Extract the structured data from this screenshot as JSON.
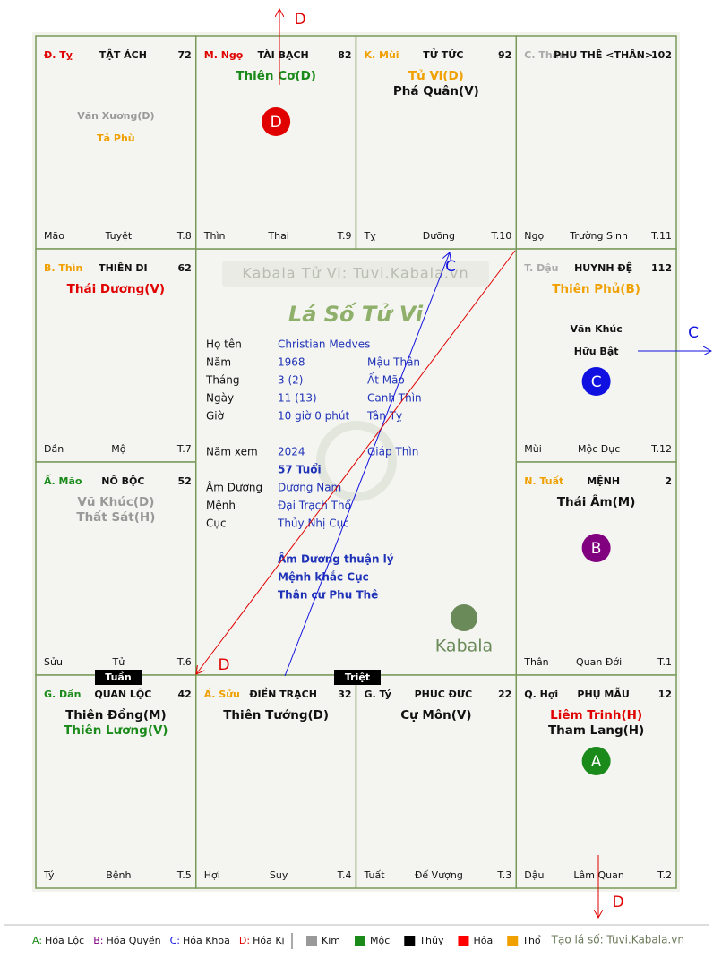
{
  "palaces": [
    {
      "branch": "Đ. Tỵ",
      "branch_color": "#e00000",
      "name": "TẬT ÁCH",
      "number": "72",
      "major_stars": [],
      "minor_stars": [
        {
          "text": "Văn Xương(D)",
          "color": "#999999"
        },
        {
          "text": "Tả Phù",
          "color": "#f0a000"
        }
      ],
      "bottom": [
        "Mão",
        "Tuyệt",
        "T.8"
      ]
    },
    {
      "branch": "M. Ngọ",
      "branch_color": "#e00000",
      "name": "TÀI BẠCH",
      "number": "82",
      "major_stars": [
        {
          "text": "Thiên Cơ(D)",
          "color": "#1a8a1a"
        }
      ],
      "minor_stars": [],
      "marker": {
        "letter": "D",
        "color": "#e00000"
      },
      "bottom": [
        "Thìn",
        "Thai",
        "T.9"
      ]
    },
    {
      "branch": "K. Mùi",
      "branch_color": "#f0a000",
      "name": "TỬ TỨC",
      "number": "92",
      "major_stars": [
        {
          "text": "Tử Vi(D)",
          "color": "#f0a000"
        },
        {
          "text": "Phá Quân(V)",
          "color": "#111111"
        }
      ],
      "minor_stars": [],
      "bottom": [
        "Tỵ",
        "Dưỡng",
        "T.10"
      ]
    },
    {
      "branch": "C. Thân",
      "branch_color": "#aaaaaa",
      "name": "PHU THÊ <THÂN>",
      "number": "102",
      "major_stars": [],
      "minor_stars": [],
      "bottom": [
        "Ngọ",
        "Trường Sinh",
        "T.11"
      ]
    },
    {
      "branch": "B. Thìn",
      "branch_color": "#f0a000",
      "name": "THIÊN DI",
      "number": "62",
      "major_stars": [
        {
          "text": "Thái Dương(V)",
          "color": "#e00000"
        }
      ],
      "minor_stars": [],
      "bottom": [
        "Dần",
        "Mộ",
        "T.7"
      ]
    },
    {
      "branch": "T. Dậu",
      "branch_color": "#aaaaaa",
      "name": "HUYNH ĐỆ",
      "number": "112",
      "major_stars": [
        {
          "text": "Thiên Phủ(B)",
          "color": "#f0a000"
        }
      ],
      "minor_stars": [
        {
          "text": "Văn Khúc",
          "color": "#111111"
        },
        {
          "text": "Hữu Bật",
          "color": "#111111"
        }
      ],
      "marker": {
        "letter": "C",
        "color": "#1010e0"
      },
      "bottom": [
        "Mùi",
        "Mộc Dục",
        "T.12"
      ]
    },
    {
      "branch": "Ấ. Mão",
      "branch_color": "#1a8a1a",
      "name": "NÔ BỘC",
      "number": "52",
      "major_stars": [
        {
          "text": "Vũ Khúc(D)",
          "color": "#999999"
        },
        {
          "text": "Thất Sát(H)",
          "color": "#999999"
        }
      ],
      "minor_stars": [],
      "bottom": [
        "Sửu",
        "Tử",
        "T.6"
      ]
    },
    {
      "branch": "N. Tuất",
      "branch_color": "#f0a000",
      "name": "MỆNH",
      "number": "2",
      "major_stars": [
        {
          "text": "Thái Âm(M)",
          "color": "#111111"
        }
      ],
      "minor_stars": [],
      "marker": {
        "letter": "B",
        "color": "#800080"
      },
      "bottom": [
        "Thân",
        "Quan Đới",
        "T.1"
      ]
    },
    {
      "branch": "G. Dần",
      "branch_color": "#1a8a1a",
      "name": "QUAN LỘC",
      "number": "42",
      "major_stars": [
        {
          "text": "Thiên Đồng(M)",
          "color": "#111111"
        },
        {
          "text": "Thiên Lương(V)",
          "color": "#1a8a1a"
        }
      ],
      "minor_stars": [],
      "bottom": [
        "Tý",
        "Bệnh",
        "T.5"
      ]
    },
    {
      "branch": "Ấ. Sửu",
      "branch_color": "#f0a000",
      "name": "ĐIỀN TRẠCH",
      "number": "32",
      "major_stars": [
        {
          "text": "Thiên Tướng(D)",
          "color": "#111111"
        }
      ],
      "minor_stars": [],
      "bottom": [
        "Hợi",
        "Suy",
        "T.4"
      ]
    },
    {
      "branch": "G. Tý",
      "branch_color": "#111111",
      "name": "PHÚC ĐỨC",
      "number": "22",
      "major_stars": [
        {
          "text": "Cự Môn(V)",
          "color": "#111111"
        }
      ],
      "minor_stars": [],
      "bottom": [
        "Tuất",
        "Đế Vượng",
        "T.3"
      ]
    },
    {
      "branch": "Q. Hợi",
      "branch_color": "#111111",
      "name": "PHỤ MẪU",
      "number": "12",
      "major_stars": [
        {
          "text": "Liêm Trinh(H)",
          "color": "#e00000"
        },
        {
          "text": "Tham Lang(H)",
          "color": "#111111"
        }
      ],
      "minor_stars": [],
      "marker": {
        "letter": "A",
        "color": "#1a8a1a"
      },
      "bottom": [
        "Dậu",
        "Lâm Quan",
        "T.2"
      ]
    }
  ],
  "center": {
    "watermark": "Kabala Tử Vi: Tuvi.Kabala.vn",
    "title": "Lá Số Tử Vi",
    "birth": [
      {
        "label": "Họ tên",
        "value": "Christian Medves"
      },
      {
        "label": "Năm",
        "value": "1968",
        "extra": "Mậu Thân"
      },
      {
        "label": "Tháng",
        "value": "3  (2)",
        "extra": "Ất Mão"
      },
      {
        "label": "Ngày",
        "value": "11  (13)",
        "extra": "Canh Thìn"
      },
      {
        "label": "Giờ",
        "value": "10 giờ 0 phút",
        "extra": "Tân Tỵ"
      }
    ],
    "current": [
      {
        "label": "Năm xem",
        "value": "2024",
        "extra": "Giáp Thìn"
      },
      {
        "value": "57 Tuổi",
        "bold": true
      },
      {
        "label": "Âm Dương",
        "value": "Dương Nam"
      },
      {
        "label": "Mệnh",
        "value": "Đại Trạch Thổ"
      },
      {
        "label": "Cục",
        "value": "Thủy Nhị Cục"
      }
    ],
    "notes": [
      "Âm Dương thuận lý",
      "Mệnh khắc Cục",
      "Thân cư Phu Thê"
    ],
    "logo": "Kabala"
  },
  "void_marks": [
    "Tuần",
    "Triệt"
  ],
  "arrows": [
    {
      "label": "D",
      "color": "#e00000"
    },
    {
      "label": "C",
      "color": "#1010e0"
    },
    {
      "label": "D",
      "color": "#e00000"
    },
    {
      "label": "C",
      "color": "#1010e0"
    },
    {
      "label": "D",
      "color": "#e00000"
    }
  ],
  "legend": {
    "hoa": [
      {
        "key": "A:",
        "label": "Hóa Lộc",
        "color": "#1a8a1a"
      },
      {
        "key": "B:",
        "label": "Hóa Quyền",
        "color": "#800080"
      },
      {
        "key": "C:",
        "label": "Hóa Khoa",
        "color": "#1010e0"
      },
      {
        "key": "D:",
        "label": "Hóa Kị",
        "color": "#e00000"
      }
    ],
    "elements": [
      {
        "label": "Kim",
        "color": "#999999"
      },
      {
        "label": "Mộc",
        "color": "#1a8a1a"
      },
      {
        "label": "Thủy",
        "color": "#000000"
      },
      {
        "label": "Hỏa",
        "color": "#ff0000"
      },
      {
        "label": "Thổ",
        "color": "#f0a000"
      }
    ],
    "credit": "Tạo lá số: Tuvi.Kabala.vn"
  }
}
